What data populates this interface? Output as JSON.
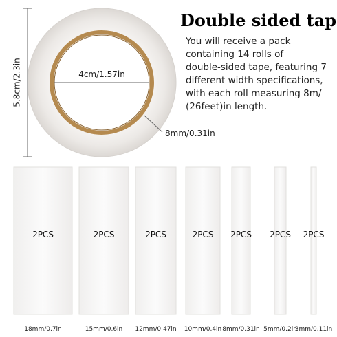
{
  "header": {
    "title": "Double sided tape",
    "description": [
      "You will receive a pack",
      "containing 14 rolls of",
      "double-sided tape, featuring 7",
      "different width specifications,",
      "with each roll measuring 8m/",
      "(26feet)in length."
    ]
  },
  "roll": {
    "height": "5.8cm/2.3in",
    "inner_diameter": "4cm/1.57in",
    "width": "8mm/0.31in"
  },
  "strips": [
    {
      "quantity": "2PCS",
      "size": "18mm/0.7in"
    },
    {
      "quantity": "2PCS",
      "size": "15mm/0.6in"
    },
    {
      "quantity": "2PCS",
      "size": "12mm/0.47in"
    },
    {
      "quantity": "2PCS",
      "size": "10mm/0.4in"
    },
    {
      "quantity": "2PCS",
      "size": "8mm/0.31in"
    },
    {
      "quantity": "2PCS",
      "size": "5mm/0.2in"
    },
    {
      "quantity": "2PCS",
      "size": "3mm/0.11in"
    }
  ]
}
